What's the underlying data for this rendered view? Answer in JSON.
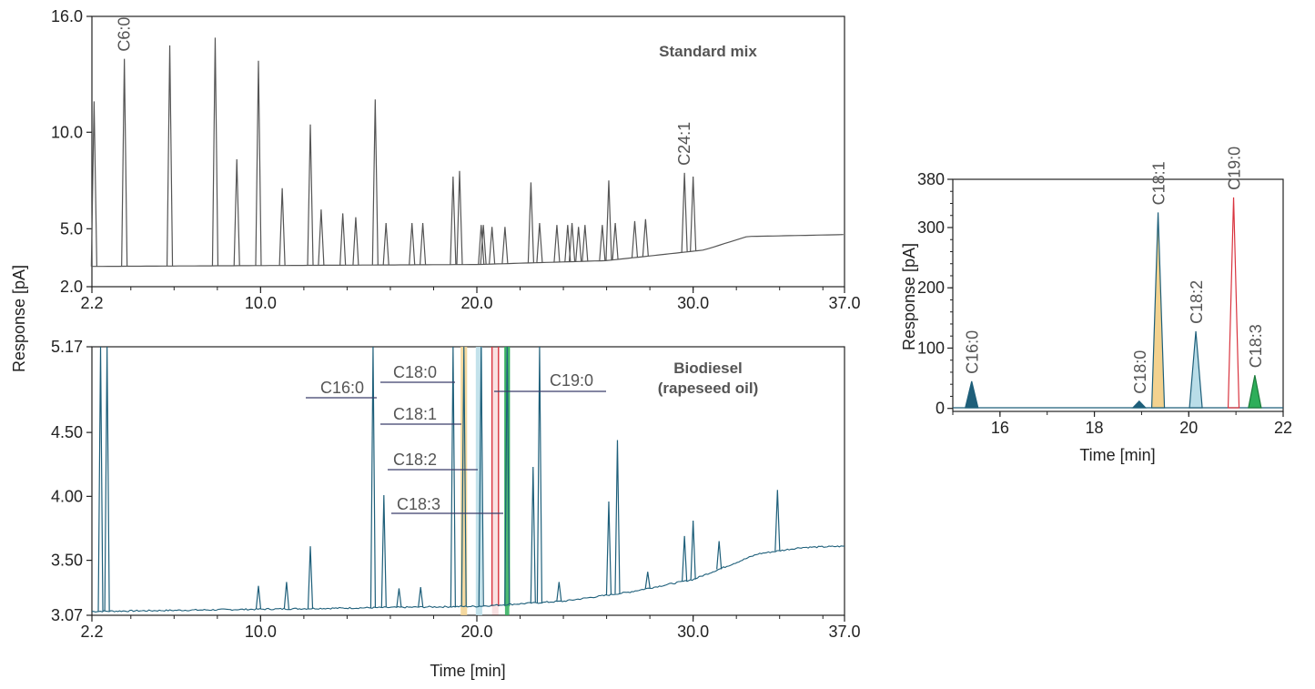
{
  "chart_data": [
    {
      "type": "line",
      "title": "Standard mix",
      "xlabel": "",
      "ylabel": "Response [pA]",
      "xlim": [
        2.2,
        37.0
      ],
      "ylim": [
        2.0,
        16.0
      ],
      "x_ticks": [
        "2.2",
        "10.0",
        "20.0",
        "30.0",
        "37.0"
      ],
      "y_ticks": [
        "2.0",
        "5.0",
        "10.0",
        "16.0"
      ],
      "grid": false,
      "baseline": [
        [
          2.2,
          3.05
        ],
        [
          20.0,
          3.15
        ],
        [
          26.0,
          3.35
        ],
        [
          30.5,
          3.9
        ],
        [
          32.5,
          4.6
        ],
        [
          37.0,
          4.7
        ]
      ],
      "peaks": [
        {
          "x": 2.3,
          "y": 11.6
        },
        {
          "x": 3.7,
          "y": 13.8
        },
        {
          "x": 5.8,
          "y": 14.5
        },
        {
          "x": 7.9,
          "y": 14.9
        },
        {
          "x": 8.9,
          "y": 8.6
        },
        {
          "x": 9.9,
          "y": 13.7
        },
        {
          "x": 11.0,
          "y": 7.1
        },
        {
          "x": 12.3,
          "y": 10.4
        },
        {
          "x": 12.8,
          "y": 6.0
        },
        {
          "x": 13.8,
          "y": 5.8
        },
        {
          "x": 14.4,
          "y": 5.6
        },
        {
          "x": 15.3,
          "y": 11.7
        },
        {
          "x": 15.8,
          "y": 5.3
        },
        {
          "x": 17.0,
          "y": 5.3
        },
        {
          "x": 17.5,
          "y": 5.3
        },
        {
          "x": 18.9,
          "y": 7.7
        },
        {
          "x": 19.2,
          "y": 8.0
        },
        {
          "x": 20.2,
          "y": 5.2
        },
        {
          "x": 20.3,
          "y": 5.2
        },
        {
          "x": 20.7,
          "y": 5.1
        },
        {
          "x": 21.3,
          "y": 5.1
        },
        {
          "x": 22.5,
          "y": 7.4
        },
        {
          "x": 22.9,
          "y": 5.3
        },
        {
          "x": 23.7,
          "y": 5.2
        },
        {
          "x": 24.2,
          "y": 5.2
        },
        {
          "x": 24.4,
          "y": 5.3
        },
        {
          "x": 24.7,
          "y": 5.1
        },
        {
          "x": 25.0,
          "y": 5.2
        },
        {
          "x": 25.8,
          "y": 5.2
        },
        {
          "x": 26.1,
          "y": 7.5
        },
        {
          "x": 26.4,
          "y": 5.3
        },
        {
          "x": 27.3,
          "y": 5.4
        },
        {
          "x": 27.8,
          "y": 5.5
        },
        {
          "x": 29.6,
          "y": 7.9
        },
        {
          "x": 30.0,
          "y": 7.7
        }
      ],
      "peak_labels": [
        {
          "text": "C6:0",
          "x": 3.7
        },
        {
          "text": "C24:1",
          "x": 29.6
        }
      ],
      "color": "#555555"
    },
    {
      "type": "line",
      "title": "Biodiesel\n(rapeseed oil)",
      "title_lines": [
        "Biodiesel",
        "(rapeseed oil)"
      ],
      "xlabel": "Time [min]",
      "ylabel": "Response [pA]",
      "xlim": [
        2.2,
        37.0
      ],
      "ylim": [
        3.07,
        5.17
      ],
      "x_ticks": [
        "2.2",
        "10.0",
        "20.0",
        "30.0",
        "37.0"
      ],
      "y_ticks": [
        "3.07",
        "3.50",
        "4.00",
        "4.50",
        "5.17"
      ],
      "grid": false,
      "baseline": [
        [
          2.2,
          3.1
        ],
        [
          20.0,
          3.14
        ],
        [
          24.0,
          3.18
        ],
        [
          27.0,
          3.25
        ],
        [
          30.0,
          3.35
        ],
        [
          33.0,
          3.55
        ],
        [
          35.0,
          3.6
        ],
        [
          37.0,
          3.61
        ]
      ],
      "peaks": [
        {
          "x": 2.6,
          "y": 5.17
        },
        {
          "x": 2.9,
          "y": 5.17
        },
        {
          "x": 12.3,
          "y": 3.61
        },
        {
          "x": 15.2,
          "y": 5.17
        },
        {
          "x": 15.7,
          "y": 4.01
        },
        {
          "x": 9.9,
          "y": 3.3
        },
        {
          "x": 11.2,
          "y": 3.33
        },
        {
          "x": 16.4,
          "y": 3.28
        },
        {
          "x": 17.4,
          "y": 3.29
        },
        {
          "x": 18.9,
          "y": 5.17
        },
        {
          "x": 19.4,
          "y": 5.17
        },
        {
          "x": 20.2,
          "y": 5.17
        },
        {
          "x": 21.4,
          "y": 5.17
        },
        {
          "x": 22.6,
          "y": 4.23
        },
        {
          "x": 22.9,
          "y": 5.17
        },
        {
          "x": 23.8,
          "y": 3.33
        },
        {
          "x": 26.1,
          "y": 3.96
        },
        {
          "x": 26.5,
          "y": 4.44
        },
        {
          "x": 27.9,
          "y": 3.41
        },
        {
          "x": 29.6,
          "y": 3.69
        },
        {
          "x": 30.0,
          "y": 3.81
        },
        {
          "x": 31.2,
          "y": 3.65
        },
        {
          "x": 33.9,
          "y": 4.05
        }
      ],
      "highlights": [
        {
          "name": "C18:1",
          "x0": 19.25,
          "x1": 19.55,
          "color": "#f3d28f"
        },
        {
          "name": "C18:2",
          "x0": 19.95,
          "x1": 20.25,
          "color": "#b9dde8"
        },
        {
          "name": "C19:0",
          "x0": 20.7,
          "x1": 21.0,
          "color": "#d9343f"
        },
        {
          "name": "C18:3",
          "x0": 21.3,
          "x1": 21.5,
          "color": "#2eae5a"
        }
      ],
      "annotations": [
        {
          "text": "C16:0",
          "x": 15.2
        },
        {
          "text": "C18:0",
          "x": 18.9
        },
        {
          "text": "C18:1",
          "x": 19.4
        },
        {
          "text": "C18:2",
          "x": 20.2
        },
        {
          "text": "C18:3",
          "x": 21.4
        },
        {
          "text": "C19:0",
          "x": 20.8
        }
      ],
      "color": "#1e5f7a"
    },
    {
      "type": "line",
      "title": "",
      "xlabel": "Time [min]",
      "ylabel": "Response [pA]",
      "xlim": [
        15.0,
        22.0
      ],
      "ylim": [
        -5,
        380
      ],
      "x_ticks": [
        "16",
        "18",
        "20",
        "22"
      ],
      "y_ticks": [
        "0",
        "100",
        "200",
        "300",
        "380"
      ],
      "grid": false,
      "series": [
        {
          "name": "C16:0",
          "x": 15.4,
          "y": 45,
          "color": "#1e5f7a"
        },
        {
          "name": "C18:0",
          "x": 18.95,
          "y": 12,
          "color": "#1e5f7a"
        },
        {
          "name": "C18:1",
          "x": 19.35,
          "y": 325,
          "color": "#f3d28f"
        },
        {
          "name": "C18:2",
          "x": 20.15,
          "y": 128,
          "color": "#b9dde8"
        },
        {
          "name": "C19:0",
          "x": 20.95,
          "y": 350,
          "color": "#d9343f"
        },
        {
          "name": "C18:3",
          "x": 21.4,
          "y": 55,
          "color": "#2eae5a"
        }
      ]
    }
  ]
}
